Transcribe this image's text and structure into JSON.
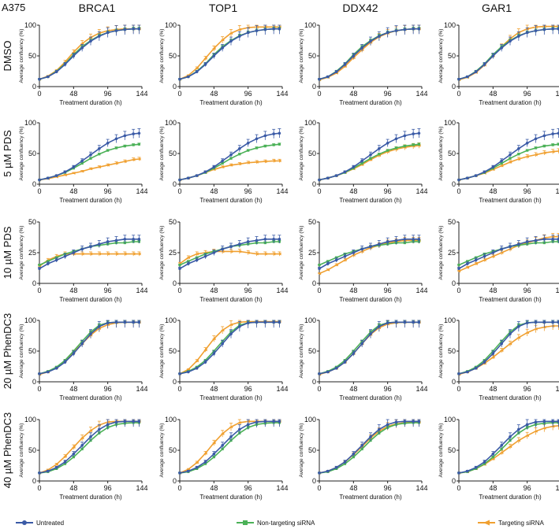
{
  "figure": {
    "cell_line": "A375",
    "columns": [
      "BRCA1",
      "TOP1",
      "DDX42",
      "GAR1"
    ],
    "rows": [
      "DMSO",
      "5 µM PDS",
      "10 µM PDS",
      "20 µM PhenDC3",
      "40 µM PhenDC3"
    ]
  },
  "legend": [
    {
      "label": "Untreated",
      "color": "#3a5aa6"
    },
    {
      "label": "Non-targeting siRNA",
      "color": "#4bb157"
    },
    {
      "label": "Targeting siRNA",
      "color": "#f0a030"
    }
  ],
  "colors": {
    "untreated": "#3a5aa6",
    "non_targeting": "#4bb157",
    "targeting": "#f0a030"
  },
  "chart_data": {
    "type": "line",
    "xlabel": "Treatment duration (h)",
    "ylabel": "Average confluency (%)",
    "xlim": [
      0,
      144
    ],
    "xticks": [
      0,
      48,
      96,
      144
    ],
    "series_names": [
      "Untreated",
      "Non-targeting siRNA",
      "Targeting siRNA"
    ],
    "x": [
      0,
      12,
      24,
      36,
      48,
      60,
      72,
      84,
      96,
      108,
      120,
      132,
      140
    ],
    "row_params": [
      {
        "row": "DMSO",
        "ylim": [
          0,
          100
        ],
        "yticks": [
          0,
          50,
          100
        ],
        "untreated": [
          12,
          16,
          24,
          36,
          50,
          63,
          74,
          82,
          88,
          91,
          93,
          94,
          94
        ],
        "non_targeting": [
          12,
          16,
          25,
          37,
          52,
          65,
          75,
          83,
          88,
          91,
          93,
          94,
          94
        ]
      },
      {
        "row": "5 µM PDS",
        "ylim": [
          0,
          100
        ],
        "yticks": [
          0,
          50,
          100
        ],
        "untreated": [
          7,
          10,
          14,
          20,
          28,
          38,
          48,
          58,
          67,
          74,
          79,
          82,
          83
        ],
        "non_targeting": [
          7,
          10,
          14,
          19,
          26,
          34,
          42,
          49,
          55,
          59,
          62,
          64,
          65
        ]
      },
      {
        "row": "10 µM PDS",
        "ylim": [
          0,
          50
        ],
        "yticks": [
          0,
          25,
          50
        ],
        "untreated": [
          12,
          16,
          19,
          22,
          25,
          28,
          30,
          32,
          34,
          35,
          36,
          36,
          36
        ],
        "non_targeting": [
          15,
          18,
          21,
          24,
          26,
          28,
          30,
          31,
          32,
          33,
          33,
          34,
          34
        ]
      },
      {
        "row": "20 µM PhenDC3",
        "ylim": [
          0,
          100
        ],
        "yticks": [
          0,
          50,
          100
        ],
        "untreated": [
          13,
          16,
          22,
          32,
          46,
          62,
          78,
          90,
          96,
          97,
          97,
          97,
          97
        ],
        "non_targeting": [
          13,
          17,
          24,
          35,
          50,
          66,
          81,
          92,
          96,
          97,
          97,
          97,
          97
        ]
      },
      {
        "row": "40 µM PhenDC3",
        "ylim": [
          0,
          100
        ],
        "yticks": [
          0,
          50,
          100
        ],
        "untreated": [
          13,
          16,
          22,
          31,
          44,
          58,
          72,
          84,
          92,
          96,
          97,
          97,
          97
        ],
        "non_targeting": [
          13,
          15,
          20,
          28,
          39,
          52,
          66,
          78,
          87,
          92,
          94,
          95,
          95
        ]
      }
    ],
    "targeting": [
      [
        [
          12,
          17,
          26,
          40,
          56,
          70,
          80,
          87,
          91,
          93,
          94,
          94,
          94
        ],
        [
          12,
          18,
          30,
          46,
          62,
          76,
          87,
          93,
          96,
          97,
          97,
          97,
          97
        ],
        [
          11,
          15,
          22,
          33,
          47,
          60,
          72,
          81,
          87,
          91,
          93,
          94,
          94
        ],
        [
          11,
          15,
          23,
          35,
          50,
          65,
          78,
          88,
          94,
          97,
          98,
          98,
          98
        ]
      ],
      [
        [
          7,
          9,
          12,
          15,
          18,
          21,
          25,
          28,
          31,
          34,
          37,
          40,
          41
        ],
        [
          7,
          10,
          14,
          19,
          24,
          28,
          31,
          33,
          35,
          36,
          37,
          38,
          38
        ],
        [
          7,
          10,
          14,
          19,
          25,
          32,
          40,
          47,
          53,
          57,
          60,
          62,
          63
        ],
        [
          7,
          10,
          14,
          18,
          24,
          30,
          36,
          41,
          45,
          48,
          51,
          53,
          54
        ]
      ],
      [
        [
          14,
          19,
          22,
          24,
          24,
          24,
          24,
          24,
          24,
          24,
          24,
          24,
          24
        ],
        [
          16,
          21,
          24,
          25,
          26,
          26,
          26,
          26,
          25,
          24,
          24,
          24,
          24
        ],
        [
          8,
          11,
          15,
          19,
          23,
          26,
          29,
          31,
          33,
          34,
          35,
          35,
          35
        ],
        [
          10,
          13,
          16,
          19,
          22,
          25,
          28,
          31,
          33,
          35,
          37,
          38,
          38
        ]
      ],
      [
        [
          12,
          16,
          23,
          34,
          48,
          62,
          76,
          87,
          93,
          96,
          97,
          97,
          97
        ],
        [
          13,
          20,
          34,
          52,
          70,
          84,
          93,
          97,
          98,
          98,
          98,
          98,
          98
        ],
        [
          12,
          16,
          22,
          32,
          46,
          62,
          77,
          88,
          94,
          96,
          97,
          97,
          97
        ],
        [
          12,
          16,
          22,
          30,
          40,
          51,
          62,
          72,
          80,
          86,
          89,
          91,
          91
        ]
      ],
      [
        [
          13,
          18,
          27,
          40,
          55,
          70,
          82,
          91,
          96,
          97,
          97,
          97,
          97
        ],
        [
          13,
          19,
          30,
          45,
          62,
          77,
          88,
          95,
          97,
          97,
          97,
          97,
          97
        ],
        [
          13,
          16,
          22,
          31,
          43,
          56,
          70,
          81,
          89,
          93,
          95,
          96,
          96
        ],
        [
          13,
          15,
          20,
          27,
          36,
          46,
          56,
          66,
          74,
          81,
          86,
          89,
          90
        ]
      ]
    ]
  }
}
